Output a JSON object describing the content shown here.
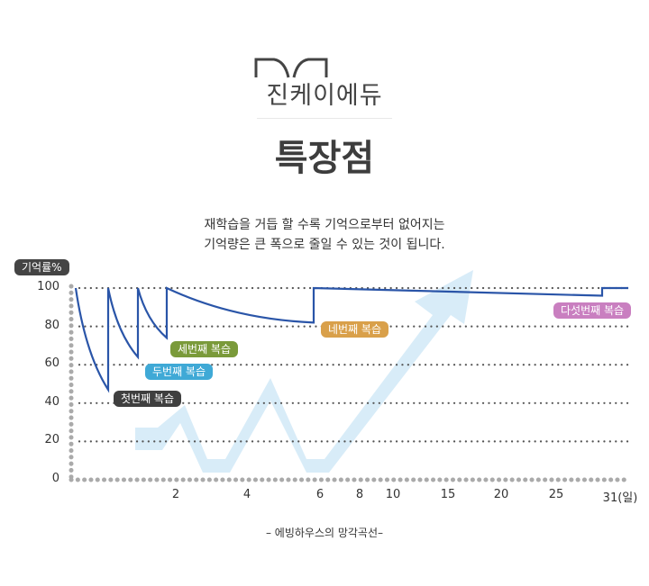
{
  "brand": {
    "name": "진케이에듀",
    "icon": "open-book-icon"
  },
  "title": "특장점",
  "subtitle": [
    "재학습을 거듭 할 수록 기억으로부터 없어지는",
    "기억량은 큰 폭으로 줄일 수 있는 것이 됩니다."
  ],
  "footer": "– 에빙하우스의 망각곡선–",
  "chart_data": {
    "type": "line",
    "title": "에빙하우스의 망각곡선",
    "ylabel": "기억률%",
    "xlabel": "(일)",
    "ylim": [
      0,
      100
    ],
    "yticks": [
      "100",
      "80",
      "60",
      "40",
      "20",
      "0"
    ],
    "xticks": [
      "2",
      "4",
      "6",
      "8",
      "10",
      "15",
      "20",
      "25",
      "31(일)"
    ],
    "grid": true,
    "series": [
      {
        "name": "기억률",
        "segments": [
          {
            "start": 100,
            "end": 47
          },
          {
            "start": 100,
            "end": 64
          },
          {
            "start": 100,
            "end": 74
          },
          {
            "start": 100,
            "end": 82
          },
          {
            "start": 100,
            "end": 96
          },
          {
            "start": 100,
            "end": 100
          }
        ]
      }
    ],
    "annotations": [
      {
        "label": "첫번째 복습",
        "color": "#3f3f3f"
      },
      {
        "label": "두번째 복습",
        "color": "#3fa9d6"
      },
      {
        "label": "세번째 복습",
        "color": "#7a9a3a"
      },
      {
        "label": "네번째 복습",
        "color": "#d9a04a"
      },
      {
        "label": "다섯번째 복습",
        "color": "#c97fc0"
      }
    ],
    "line_color": "#2a55a8"
  }
}
